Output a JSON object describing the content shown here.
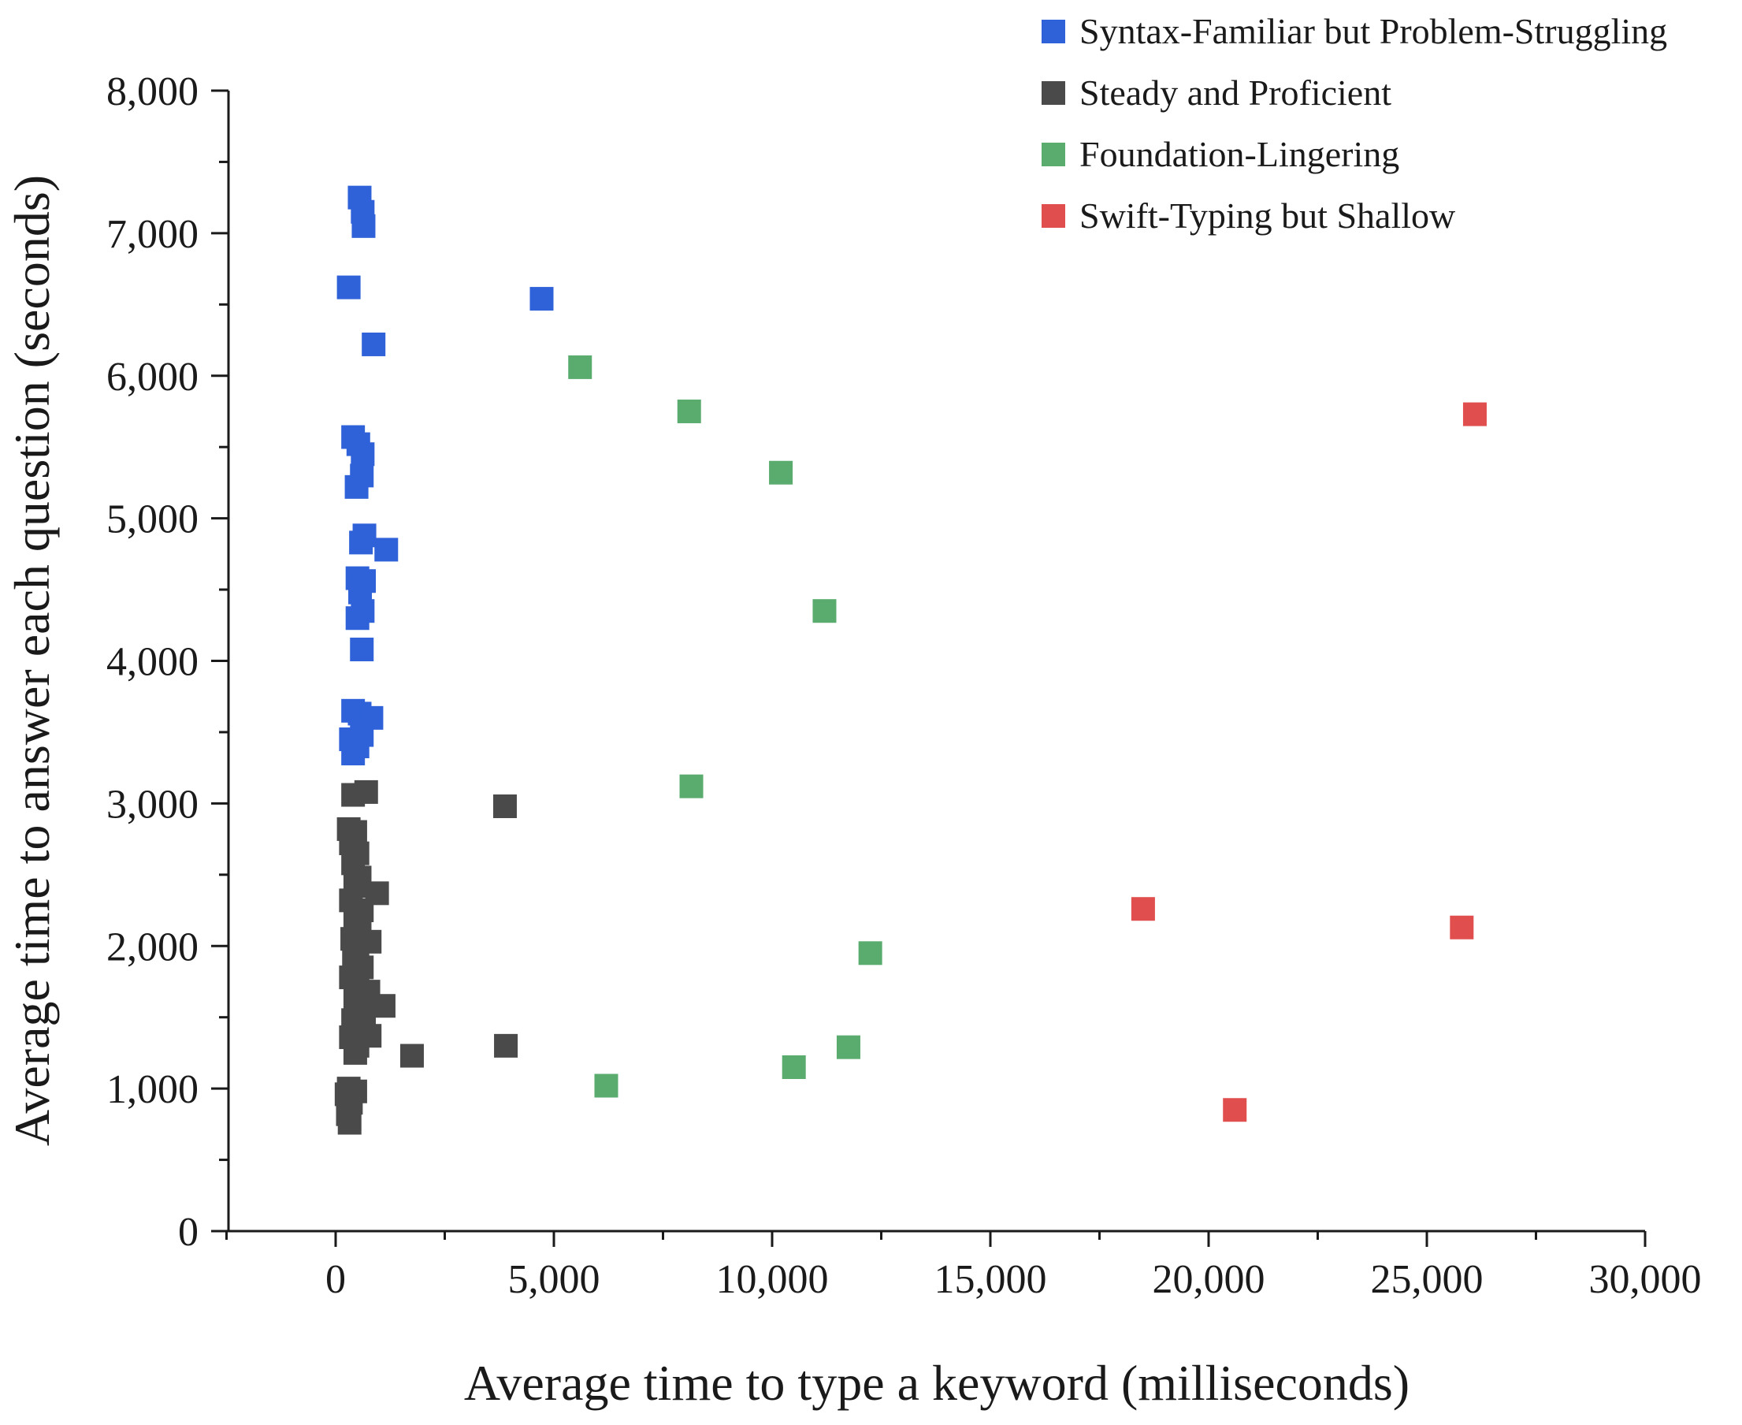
{
  "chart_data": {
    "type": "scatter",
    "title": "",
    "xlabel": "Average time to type a keyword (milliseconds)",
    "ylabel": "Average time to answer each question (seconds)",
    "xlim": [
      -2500,
      30000
    ],
    "ylim": [
      0,
      8000
    ],
    "xticks": [
      0,
      5000,
      10000,
      15000,
      20000,
      25000,
      30000
    ],
    "xtick_labels": [
      "0",
      "5,000",
      "10,000",
      "15,000",
      "20,000",
      "25,000",
      "30,000"
    ],
    "yticks": [
      0,
      1000,
      2000,
      3000,
      4000,
      5000,
      6000,
      7000,
      8000
    ],
    "ytick_labels": [
      "0",
      "1,000",
      "2,000",
      "3,000",
      "4,000",
      "5,000",
      "6,000",
      "7,000",
      "8,000"
    ],
    "grid": false,
    "legend_position": "top-right",
    "marker": "square",
    "series": [
      {
        "name": "Syntax-Familiar but Problem-Struggling",
        "color": "#2f62d8",
        "points": [
          [
            550,
            7250
          ],
          [
            620,
            7150
          ],
          [
            640,
            7050
          ],
          [
            300,
            6620
          ],
          [
            4720,
            6540
          ],
          [
            870,
            6220
          ],
          [
            400,
            5570
          ],
          [
            520,
            5520
          ],
          [
            620,
            5450
          ],
          [
            600,
            5300
          ],
          [
            480,
            5220
          ],
          [
            660,
            4880
          ],
          [
            580,
            4830
          ],
          [
            1160,
            4780
          ],
          [
            500,
            4580
          ],
          [
            650,
            4560
          ],
          [
            560,
            4480
          ],
          [
            620,
            4350
          ],
          [
            500,
            4300
          ],
          [
            600,
            4080
          ],
          [
            400,
            3650
          ],
          [
            550,
            3630
          ],
          [
            820,
            3600
          ],
          [
            600,
            3480
          ],
          [
            350,
            3450
          ],
          [
            500,
            3400
          ],
          [
            400,
            3350
          ]
        ]
      },
      {
        "name": "Steady and Proficient",
        "color": "#4a4a4a",
        "points": [
          [
            400,
            3060
          ],
          [
            700,
            3080
          ],
          [
            3880,
            2980
          ],
          [
            300,
            2820
          ],
          [
            450,
            2800
          ],
          [
            350,
            2720
          ],
          [
            500,
            2650
          ],
          [
            400,
            2580
          ],
          [
            550,
            2480
          ],
          [
            450,
            2420
          ],
          [
            950,
            2370
          ],
          [
            350,
            2320
          ],
          [
            600,
            2250
          ],
          [
            450,
            2180
          ],
          [
            550,
            2100
          ],
          [
            380,
            2050
          ],
          [
            780,
            2030
          ],
          [
            500,
            1980
          ],
          [
            420,
            1900
          ],
          [
            600,
            1850
          ],
          [
            350,
            1780
          ],
          [
            500,
            1720
          ],
          [
            750,
            1680
          ],
          [
            450,
            1620
          ],
          [
            1100,
            1580
          ],
          [
            600,
            1550
          ],
          [
            400,
            1480
          ],
          [
            650,
            1420
          ],
          [
            350,
            1360
          ],
          [
            780,
            1370
          ],
          [
            500,
            1300
          ],
          [
            3900,
            1300
          ],
          [
            1750,
            1230
          ],
          [
            450,
            1250
          ],
          [
            300,
            1000
          ],
          [
            450,
            980
          ],
          [
            250,
            960
          ],
          [
            350,
            900
          ],
          [
            280,
            820
          ],
          [
            320,
            760
          ]
        ]
      },
      {
        "name": "Foundation-Lingering",
        "color": "#5aab6e",
        "points": [
          [
            5600,
            6060
          ],
          [
            8100,
            5750
          ],
          [
            10200,
            5320
          ],
          [
            11200,
            4350
          ],
          [
            8150,
            3120
          ],
          [
            12250,
            1950
          ],
          [
            11750,
            1290
          ],
          [
            10500,
            1150
          ],
          [
            6200,
            1020
          ]
        ]
      },
      {
        "name": "Swift-Typing but Shallow",
        "color": "#e04e4e",
        "points": [
          [
            26100,
            5730
          ],
          [
            18500,
            2260
          ],
          [
            25800,
            2130
          ],
          [
            20600,
            850
          ]
        ]
      }
    ]
  }
}
